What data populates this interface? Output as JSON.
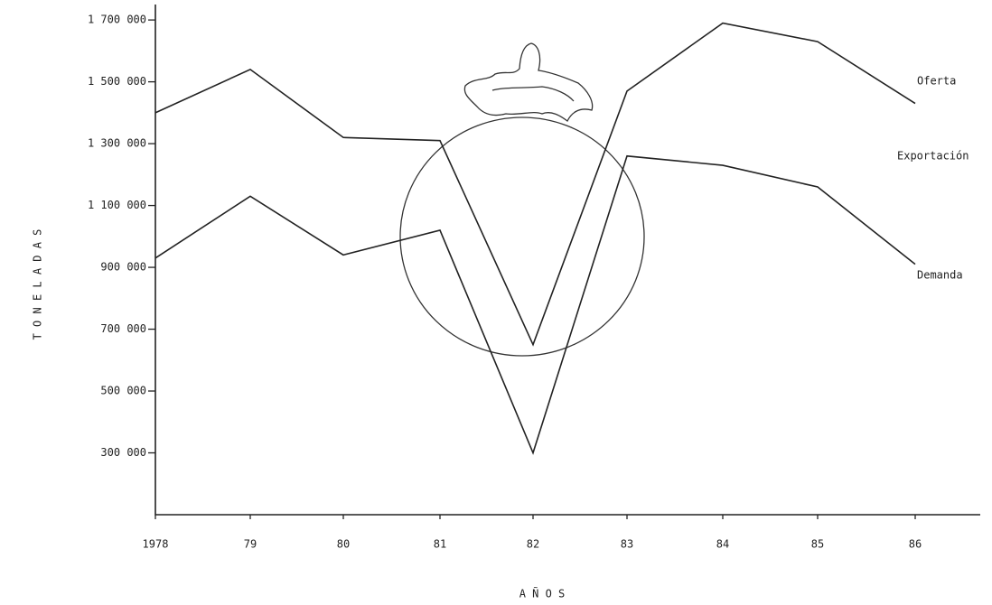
{
  "chart_data": {
    "type": "line",
    "categories": [
      "1978",
      "79",
      "80",
      "81",
      "82",
      "83",
      "84",
      "85",
      "86"
    ],
    "series": [
      {
        "name": "Oferta",
        "color": "#222222",
        "values": [
          1400000,
          1540000,
          1320000,
          1310000,
          650000,
          1470000,
          1690000,
          1630000,
          1430000
        ]
      },
      {
        "name": "Demanda",
        "color": "#222222",
        "values": [
          930000,
          1130000,
          940000,
          1020000,
          300000,
          1260000,
          1230000,
          1160000,
          910000
        ]
      }
    ],
    "annotations": [
      "Exportación"
    ],
    "ylim": [
      100000,
      1750000
    ],
    "yticks": [
      {
        "value": 300000,
        "label": "300 000"
      },
      {
        "value": 500000,
        "label": "500 000"
      },
      {
        "value": 700000,
        "label": "700 000"
      },
      {
        "value": 900000,
        "label": "900 000"
      },
      {
        "value": 1100000,
        "label": "1 100 000"
      },
      {
        "value": 1300000,
        "label": "1 300 000"
      },
      {
        "value": 1500000,
        "label": "1 500 000"
      },
      {
        "value": 1700000,
        "label": "1 700 000"
      }
    ],
    "ylabel": "T O N E L A D A S",
    "xlabel": "A Ñ O S",
    "grid": false
  }
}
